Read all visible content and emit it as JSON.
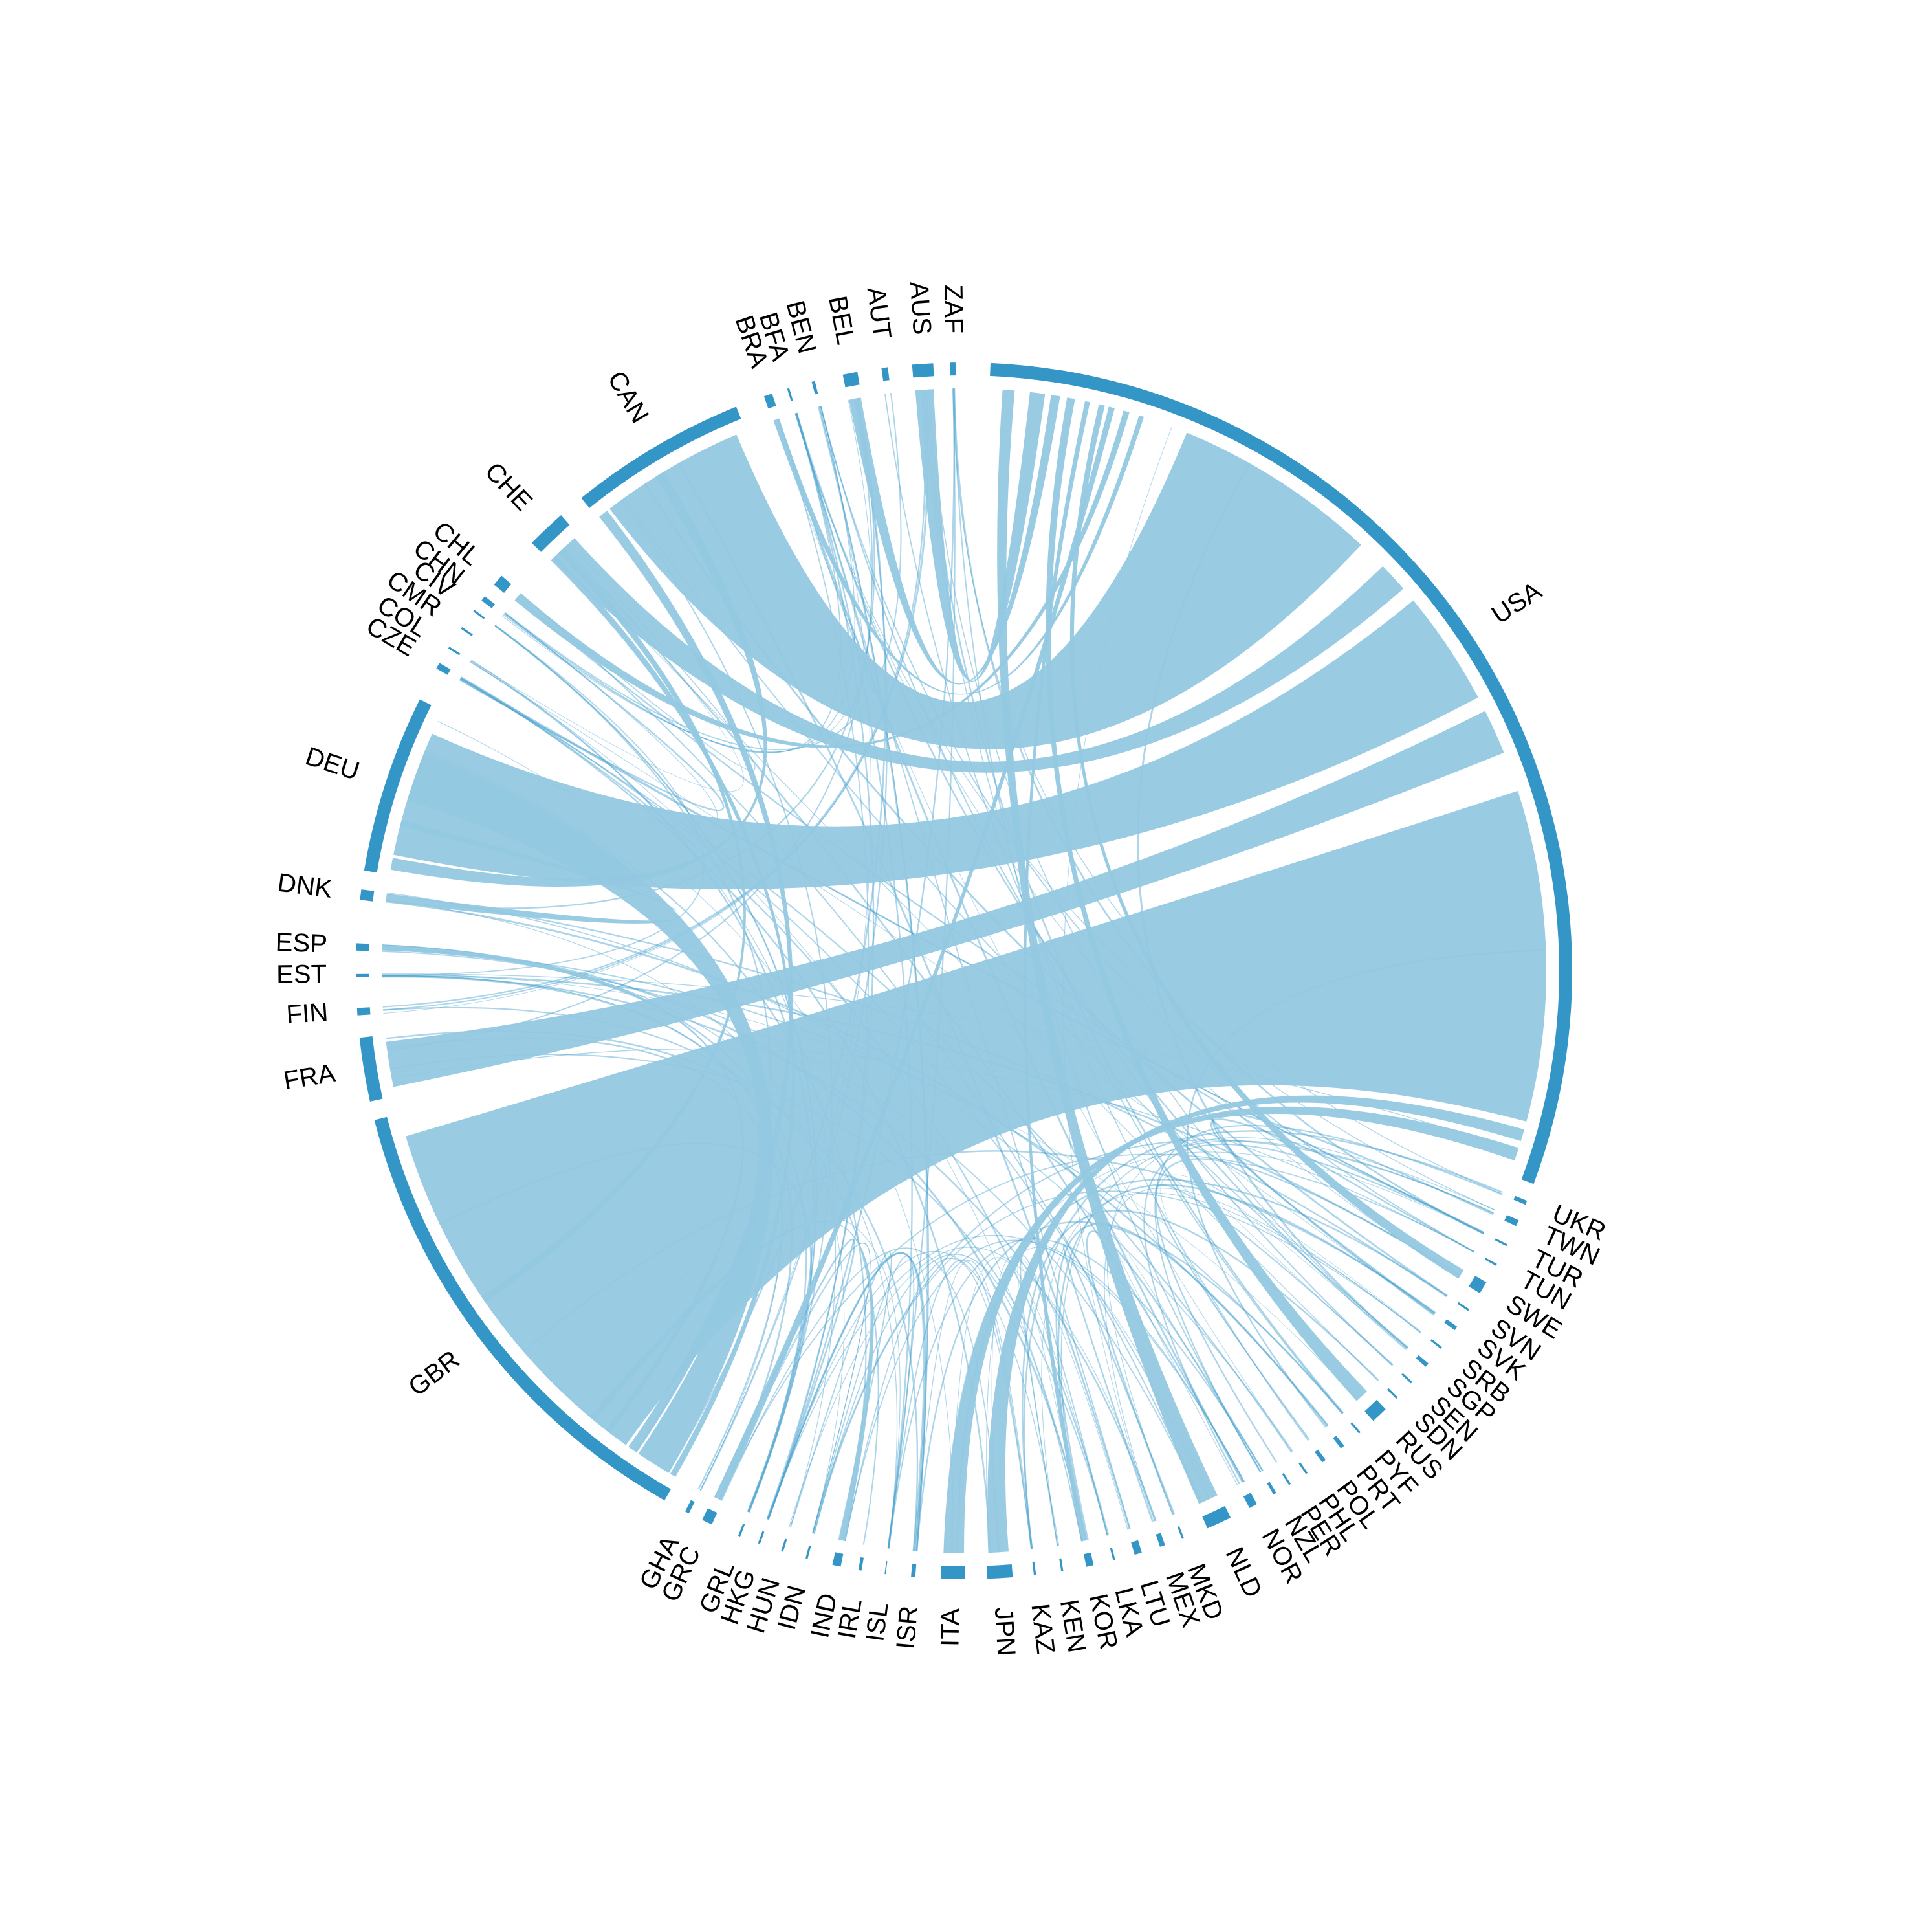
{
  "colors": {
    "sector": "#3396c6",
    "ribbon": "#94c8e1",
    "ribbon_dark": "#3396c6",
    "thread": "#4aa2cf",
    "background": "#ffffff"
  },
  "sectors": [
    {
      "label": "ZAF",
      "start": 90.8,
      "end": 91.3
    },
    {
      "label": "AUS",
      "start": 92.9,
      "end": 94.9
    },
    {
      "label": "AUT",
      "start": 97.2,
      "end": 97.8
    },
    {
      "label": "BEL",
      "start": 100.1,
      "end": 101.5
    },
    {
      "label": "BEN",
      "start": 104.2,
      "end": 104.5
    },
    {
      "label": "BFA",
      "start": 106.7,
      "end": 106.9
    },
    {
      "label": "BRA",
      "start": 108.4,
      "end": 109.2
    },
    {
      "label": "CAN",
      "start": 112.0,
      "end": 129.0
    },
    {
      "label": "CHE",
      "start": 131.5,
      "end": 135.3
    },
    {
      "label": "CHL",
      "start": 139.5,
      "end": 140.6
    },
    {
      "label": "CHN",
      "start": 142.0,
      "end": 142.5
    },
    {
      "label": "CIV",
      "start": 143.6,
      "end": 143.8
    },
    {
      "label": "CMR",
      "start": 145.6,
      "end": 145.8
    },
    {
      "label": "COL",
      "start": 147.8,
      "end": 148.0
    },
    {
      "label": "CZE",
      "start": 149.6,
      "end": 150.2
    },
    {
      "label": "DEU",
      "start": 153.5,
      "end": 170.5
    },
    {
      "label": "DNK",
      "start": 172.3,
      "end": 173.3
    },
    {
      "label": "ESP",
      "start": 177.4,
      "end": 178.1
    },
    {
      "label": "EST",
      "start": 180.3,
      "end": 180.6
    },
    {
      "label": "FIN",
      "start": 183.5,
      "end": 184.2
    },
    {
      "label": "FRA",
      "start": 186.3,
      "end": 192.4
    },
    {
      "label": "GBR",
      "start": 194.2,
      "end": 240.5
    },
    {
      "label": "GHA",
      "start": 242.7,
      "end": 243.1
    },
    {
      "label": "GRC",
      "start": 244.5,
      "end": 245.5
    },
    {
      "label": "GRL",
      "start": 248.2,
      "end": 248.4
    },
    {
      "label": "HKG",
      "start": 250.2,
      "end": 250.4
    },
    {
      "label": "HUN",
      "start": 252.5,
      "end": 252.7
    },
    {
      "label": "IDN",
      "start": 254.9,
      "end": 255.1
    },
    {
      "label": "IND",
      "start": 257.5,
      "end": 258.3
    },
    {
      "label": "IRL",
      "start": 260.0,
      "end": 260.3
    },
    {
      "label": "ISL",
      "start": 262.5,
      "end": 262.6
    },
    {
      "label": "ISR",
      "start": 265.0,
      "end": 265.4
    },
    {
      "label": "ITA",
      "start": 267.8,
      "end": 270.1
    },
    {
      "label": "JPN",
      "start": 272.2,
      "end": 274.6
    },
    {
      "label": "KAZ",
      "start": 276.6,
      "end": 276.8
    },
    {
      "label": "KEN",
      "start": 279.2,
      "end": 279.4
    },
    {
      "label": "KOR",
      "start": 281.6,
      "end": 282.3
    },
    {
      "label": "LKA",
      "start": 284.2,
      "end": 284.4
    },
    {
      "label": "LTU",
      "start": 286.3,
      "end": 287.0
    },
    {
      "label": "MEX",
      "start": 288.8,
      "end": 289.3
    },
    {
      "label": "MKD",
      "start": 291.0,
      "end": 291.2
    },
    {
      "label": "NLD",
      "start": 293.6,
      "end": 296.0
    },
    {
      "label": "NOR",
      "start": 298.0,
      "end": 298.8
    },
    {
      "label": "NZL",
      "start": 300.6,
      "end": 300.9
    },
    {
      "label": "PER",
      "start": 302.3,
      "end": 302.5
    },
    {
      "label": "PHL",
      "start": 304.2,
      "end": 304.4
    },
    {
      "label": "POL",
      "start": 306.1,
      "end": 306.5
    },
    {
      "label": "PRT",
      "start": 308.3,
      "end": 308.7
    },
    {
      "label": "PYF",
      "start": 310.5,
      "end": 310.7
    },
    {
      "label": "RUS",
      "start": 312.3,
      "end": 313.9
    },
    {
      "label": "SDN",
      "start": 315.3,
      "end": 315.5
    },
    {
      "label": "SEN",
      "start": 317.3,
      "end": 317.5
    },
    {
      "label": "SGP",
      "start": 319.4,
      "end": 319.8
    },
    {
      "label": "SRB",
      "start": 321.6,
      "end": 321.8
    },
    {
      "label": "SVK",
      "start": 323.8,
      "end": 324.2
    },
    {
      "label": "SVN",
      "start": 326.0,
      "end": 326.2
    },
    {
      "label": "SWE",
      "start": 328.0,
      "end": 329.2
    },
    {
      "label": "TUN",
      "start": 331.0,
      "end": 331.2
    },
    {
      "label": "TUR",
      "start": 333.1,
      "end": 333.3
    },
    {
      "label": "TWN",
      "start": 335.2,
      "end": 335.8
    },
    {
      "label": "UKR",
      "start": 337.4,
      "end": 337.8
    },
    {
      "label": "USA",
      "start": 339.5,
      "end": 447.5
    }
  ],
  "links": [
    {
      "from": "USA",
      "to": "GBR",
      "from_range": [
        345.0,
        378.0
      ],
      "to_range": [
        196.5,
        234.5
      ],
      "shade": "light"
    },
    {
      "from": "USA",
      "to": "CAN",
      "from_range": [
        407.0,
        427.5
      ],
      "to_range": [
        113.0,
        127.5
      ],
      "shade": "light"
    },
    {
      "from": "USA",
      "to": "DEU",
      "from_range": [
        388.0,
        399.5
      ],
      "to_range": [
        156.0,
        168.5
      ],
      "shade": "light"
    },
    {
      "from": "USA",
      "to": "FRA",
      "from_range": [
        382.0,
        386.5
      ],
      "to_range": [
        187.0,
        191.5
      ],
      "shade": "light"
    },
    {
      "from": "USA",
      "to": "CHE",
      "from_range": [
        401.0,
        404.0
      ],
      "to_range": [
        132.0,
        135.0
      ],
      "shade": "light"
    },
    {
      "from": "USA",
      "to": "AUS",
      "from_range": [
        442.0,
        443.5
      ],
      "to_range": [
        93.0,
        94.8
      ],
      "shade": "light"
    },
    {
      "from": "USA",
      "to": "ITA",
      "from_range": [
        341.0,
        342.3
      ],
      "to_range": [
        268.0,
        270.0
      ],
      "shade": "light"
    },
    {
      "from": "USA",
      "to": "JPN",
      "from_range": [
        343.0,
        344.2
      ],
      "to_range": [
        272.4,
        274.4
      ],
      "shade": "light"
    },
    {
      "from": "USA",
      "to": "NLD",
      "from_range": [
        445.0,
        446.2
      ],
      "to_range": [
        293.8,
        295.8
      ],
      "shade": "light"
    },
    {
      "from": "GBR",
      "to": "DEU",
      "from_range": [
        236.0,
        239.5
      ],
      "to_range": [
        158.0,
        163.0
      ],
      "shade": "light"
    },
    {
      "from": "GBR",
      "to": "CAN",
      "from_range": [
        234.8,
        235.8
      ],
      "to_range": [
        127.8,
        128.8
      ],
      "shade": "light"
    },
    {
      "from": "GBR",
      "to": "CHE",
      "from_range": [
        239.7,
        240.3
      ],
      "to_range": [
        134.5,
        135.2
      ],
      "shade": "light"
    },
    {
      "from": "CAN",
      "to": "DEU",
      "from_range": [
        121.0,
        122.0
      ],
      "to_range": [
        168.8,
        170.0
      ],
      "shade": "light"
    },
    {
      "from": "GBR",
      "to": "IND",
      "from_range": [
        230.0,
        230.6
      ],
      "to_range": [
        257.6,
        258.2
      ],
      "shade": "light"
    },
    {
      "from": "USA",
      "to": "RUS",
      "from_range": [
        439.0,
        439.8
      ],
      "to_range": [
        312.4,
        313.8
      ],
      "shade": "light"
    },
    {
      "from": "USA",
      "to": "SWE",
      "from_range": [
        436.0,
        436.6
      ],
      "to_range": [
        328.1,
        329.1
      ],
      "shade": "light"
    },
    {
      "from": "DEU",
      "to": "DNK",
      "from_range": [
        165.0,
        165.6
      ],
      "to_range": [
        172.4,
        173.2
      ],
      "shade": "light"
    },
    {
      "from": "GBR",
      "to": "ESP",
      "from_range": [
        232.0,
        232.5
      ],
      "to_range": [
        177.5,
        178.0
      ],
      "shade": "light"
    },
    {
      "from": "USA",
      "to": "BEL",
      "from_range": [
        440.5,
        441.4
      ],
      "to_range": [
        100.2,
        101.4
      ],
      "shade": "light"
    },
    {
      "from": "CHE",
      "to": "GBR",
      "from_range": [
        133.5,
        134.2
      ],
      "to_range": [
        214.0,
        214.7
      ],
      "shade": "light"
    },
    {
      "from": "USA",
      "to": "KOR",
      "from_range": [
        437.5,
        438.0
      ],
      "to_range": [
        281.7,
        282.2
      ],
      "shade": "light"
    },
    {
      "from": "USA",
      "to": "GRC",
      "from_range": [
        435.0,
        435.6
      ],
      "to_range": [
        244.6,
        245.4
      ],
      "shade": "light"
    },
    {
      "from": "USA",
      "to": "CHL",
      "from_range": [
        433.5,
        434.1
      ],
      "to_range": [
        139.6,
        140.5
      ],
      "shade": "light"
    },
    {
      "from": "USA",
      "to": "BRA",
      "from_range": [
        432.0,
        432.5
      ],
      "to_range": [
        108.5,
        109.1
      ],
      "shade": "light"
    }
  ]
}
